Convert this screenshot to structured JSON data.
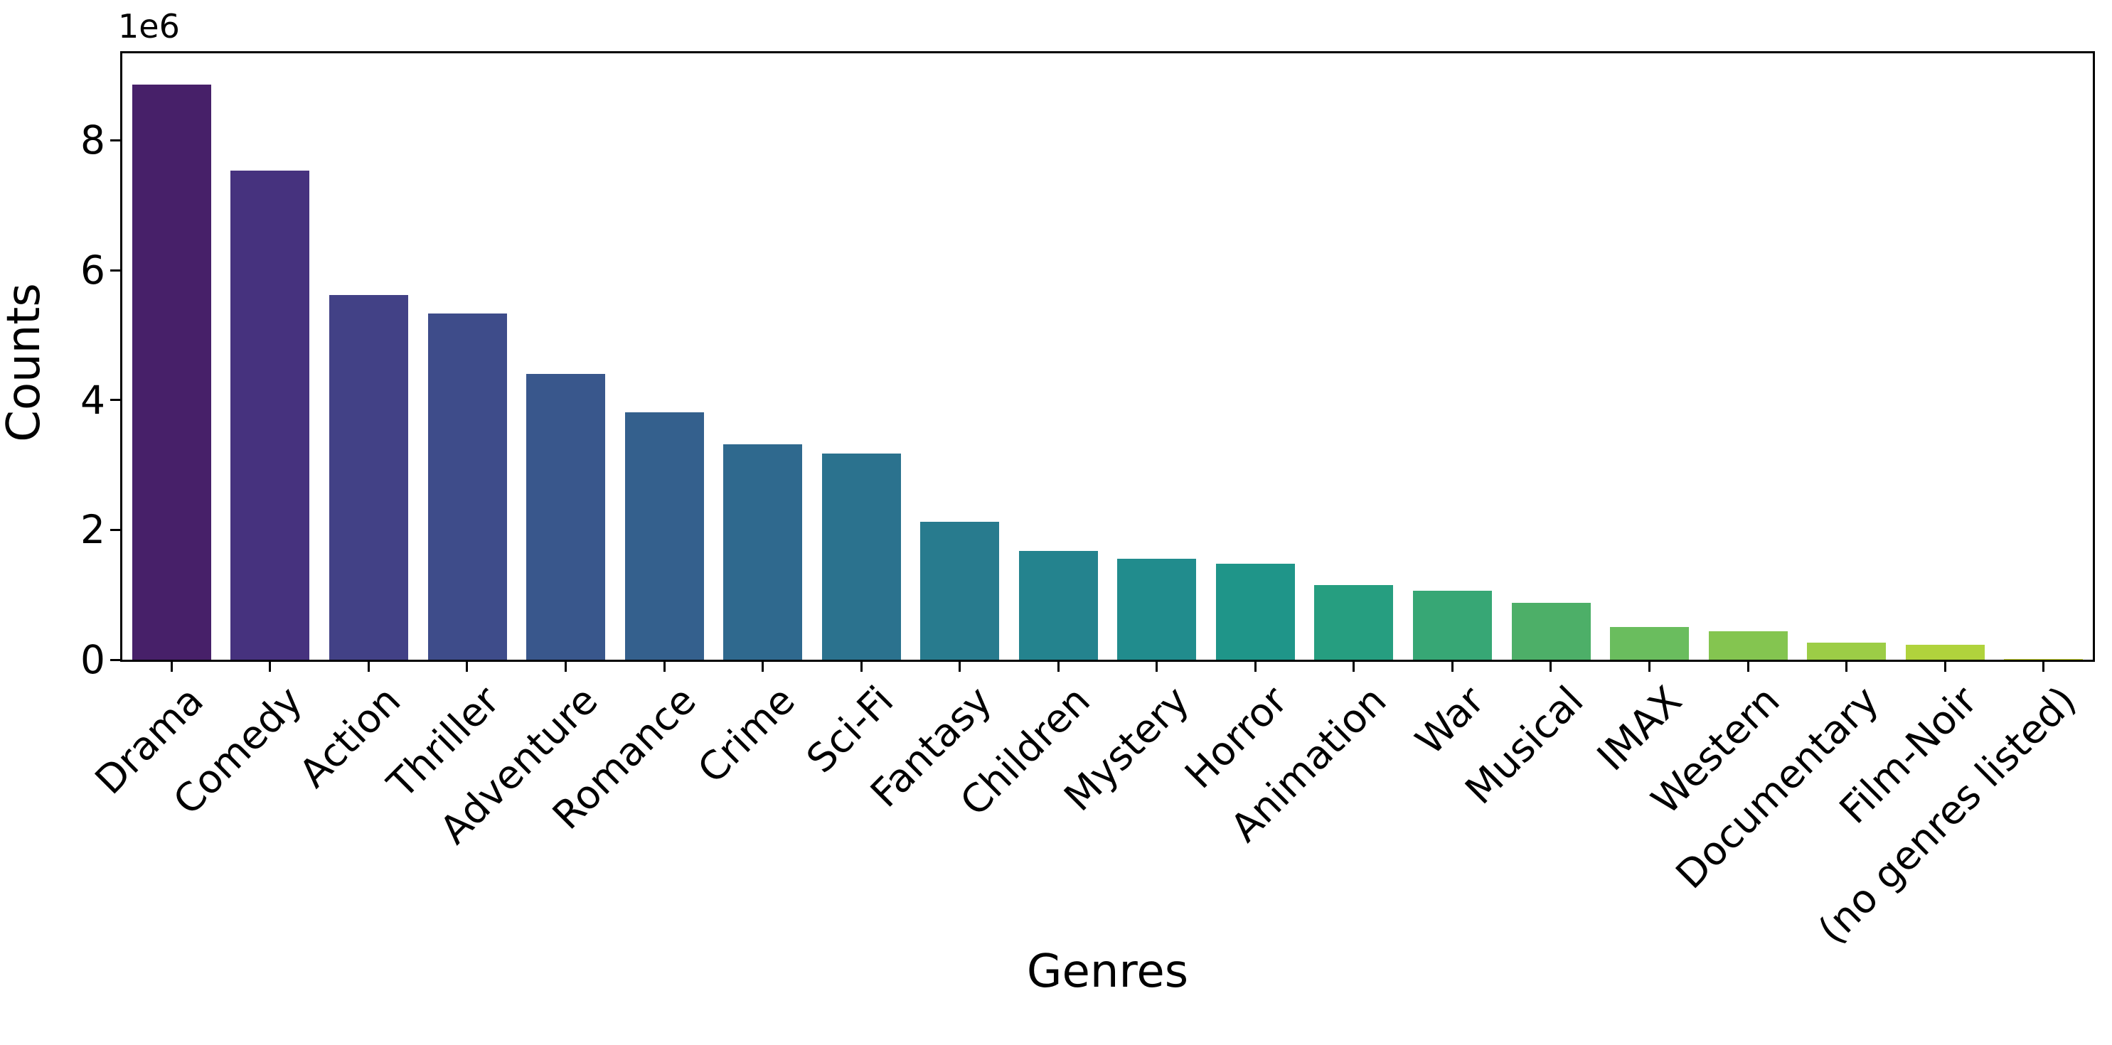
{
  "chart_data": {
    "type": "bar",
    "title": "",
    "xlabel": "Genres",
    "ylabel": "Counts",
    "y_axis_offset_label": "1e6",
    "categories": [
      "Drama",
      "Comedy",
      "Action",
      "Thriller",
      "Adventure",
      "Romance",
      "Crime",
      "Sci-Fi",
      "Fantasy",
      "Children",
      "Mystery",
      "Horror",
      "Animation",
      "War",
      "Musical",
      "IMAX",
      "Western",
      "Documentary",
      "Film-Noir",
      "(no genres listed)"
    ],
    "values": [
      8860000,
      7530000,
      5620000,
      5330000,
      4400000,
      3810000,
      3320000,
      3170000,
      2120000,
      1680000,
      1560000,
      1480000,
      1150000,
      1060000,
      880000,
      500000,
      440000,
      260000,
      230000,
      10000
    ],
    "bar_colors": [
      "#472069",
      "#46327e",
      "#424186",
      "#3e4c8a",
      "#39578c",
      "#34608d",
      "#2f698e",
      "#2b728e",
      "#287b8e",
      "#24838e",
      "#218c8d",
      "#1f9589",
      "#269e80",
      "#37a775",
      "#4daf68",
      "#6abd5e",
      "#84c550",
      "#9ccd46",
      "#b0d33c",
      "#cfdc31"
    ],
    "ylim": [
      0,
      9340000
    ],
    "yticks": [
      0,
      2000000,
      4000000,
      6000000,
      8000000
    ],
    "ytick_labels": [
      "0",
      "2",
      "4",
      "6",
      "8"
    ],
    "grid": false,
    "legend": "none",
    "axis_color": "#000000",
    "background": "#ffffff",
    "bar_rel_width": 0.8
  }
}
